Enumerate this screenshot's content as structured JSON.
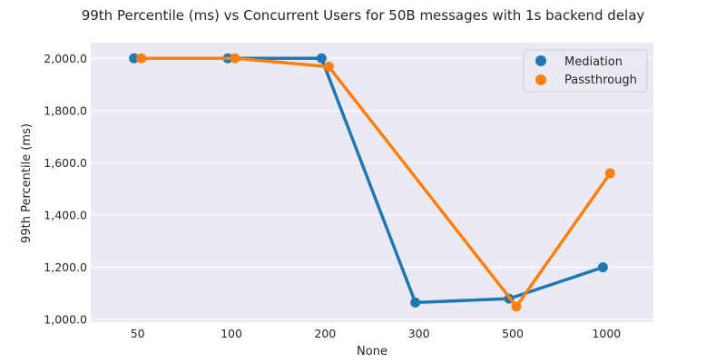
{
  "chart_data": {
    "type": "line",
    "title": "99th Percentile (ms) vs Concurrent Users for 50B messages with 1s backend delay",
    "xlabel": "None",
    "ylabel": "99th Percentile (ms)",
    "categories": [
      "50",
      "100",
      "200",
      "300",
      "500",
      "1000"
    ],
    "y_ticks": [
      "1,000.0",
      "1,200.0",
      "1,400.0",
      "1,600.0",
      "1,800.0",
      "2,000.0"
    ],
    "ylim": [
      990,
      2060
    ],
    "grid": true,
    "legend_position": "top-right",
    "series": [
      {
        "name": "Mediation",
        "color": "#1f77b4",
        "values": [
          2000,
          2000,
          2000,
          1065,
          1080,
          1200
        ]
      },
      {
        "name": "Passthrough",
        "color": "#ff7f0e",
        "values": [
          2000,
          2000,
          1968,
          null,
          1050,
          1560
        ]
      }
    ],
    "colors": {
      "plot_background": "#eaeaf2",
      "grid": "#ffffff",
      "text": "#262626"
    }
  }
}
